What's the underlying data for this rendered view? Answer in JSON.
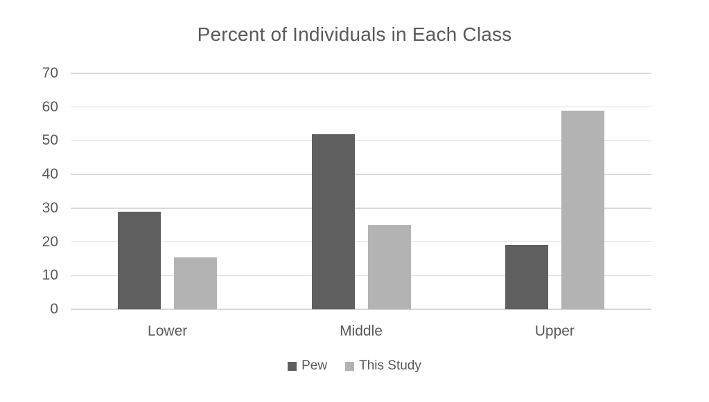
{
  "chart_data": {
    "type": "bar",
    "title": "Percent of Individuals in Each Class",
    "categories": [
      "Lower",
      "Middle",
      "Upper"
    ],
    "series": [
      {
        "name": "Pew",
        "color": "#5f5f5f",
        "values": [
          29,
          52,
          19
        ]
      },
      {
        "name": "This Study",
        "color": "#b3b3b3",
        "values": [
          15.5,
          25,
          59
        ]
      }
    ],
    "xlabel": "",
    "ylabel": "",
    "ylim": [
      0,
      70
    ],
    "yticks": [
      0,
      10,
      20,
      30,
      40,
      50,
      60,
      70
    ],
    "grid": true,
    "legend_position": "bottom"
  },
  "style": {
    "background": "#ffffff",
    "text_color": "#595959",
    "gridline_color": "#d9d9d9",
    "axis_line_color": "#d4d4d4"
  }
}
